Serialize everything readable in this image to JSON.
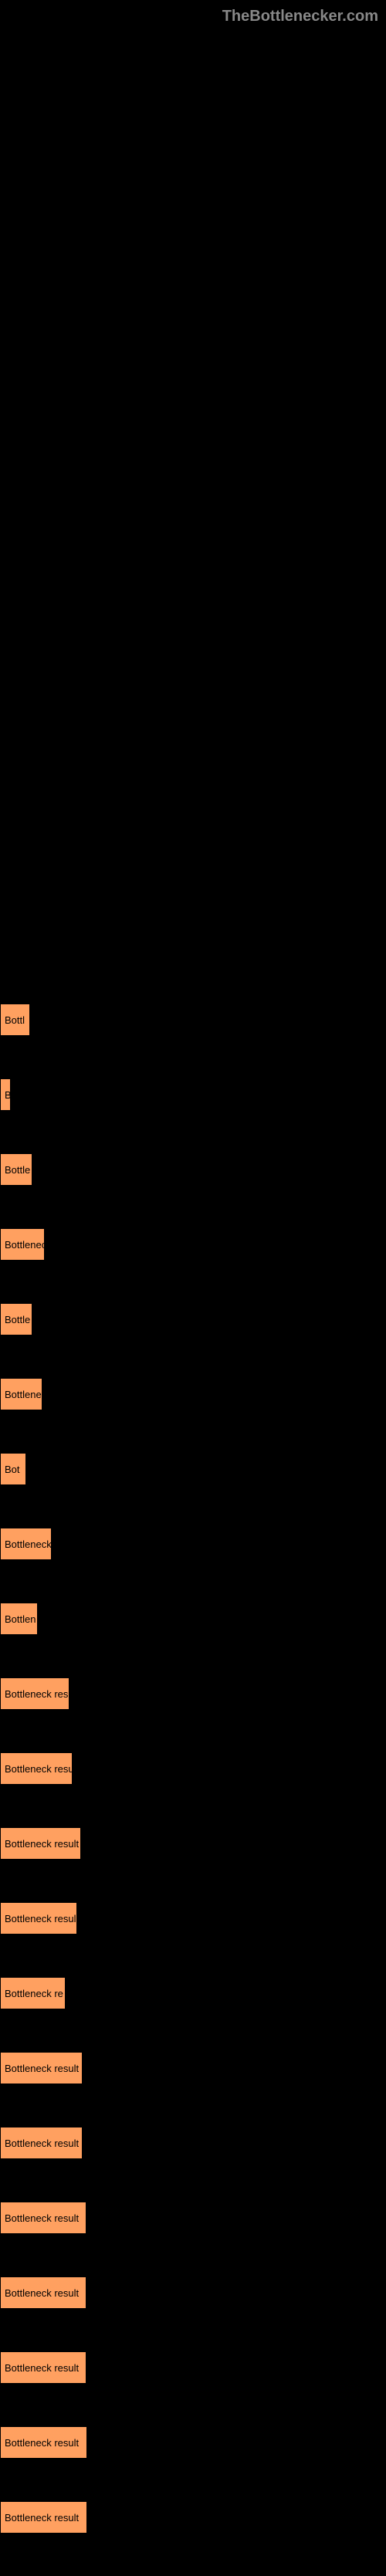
{
  "watermark": "TheBottlenecker.com",
  "chart": {
    "type": "bar",
    "background_color": "#000000",
    "bar_color": "#ffa060",
    "bar_border_color": "#000000",
    "text_color": "#000000",
    "label_fontsize": 13,
    "bars": [
      {
        "label": "Bottl",
        "width": 32
      },
      {
        "label": "B",
        "width": 7
      },
      {
        "label": "Bottle",
        "width": 35
      },
      {
        "label": "Bottlenec",
        "width": 51
      },
      {
        "label": "Bottle",
        "width": 35
      },
      {
        "label": "Bottlene",
        "width": 48
      },
      {
        "label": "Bot",
        "width": 27
      },
      {
        "label": "Bottleneck",
        "width": 60
      },
      {
        "label": "Bottlen",
        "width": 42
      },
      {
        "label": "Bottleneck res",
        "width": 83
      },
      {
        "label": "Bottleneck resu",
        "width": 87
      },
      {
        "label": "Bottleneck result",
        "width": 98
      },
      {
        "label": "Bottleneck resul",
        "width": 93
      },
      {
        "label": "Bottleneck re",
        "width": 78
      },
      {
        "label": "Bottleneck result",
        "width": 100
      },
      {
        "label": "Bottleneck result",
        "width": 100
      },
      {
        "label": "Bottleneck result",
        "width": 105
      },
      {
        "label": "Bottleneck result",
        "width": 105
      },
      {
        "label": "Bottleneck result",
        "width": 105
      },
      {
        "label": "Bottleneck result",
        "width": 106
      },
      {
        "label": "Bottleneck result",
        "width": 106
      }
    ]
  }
}
